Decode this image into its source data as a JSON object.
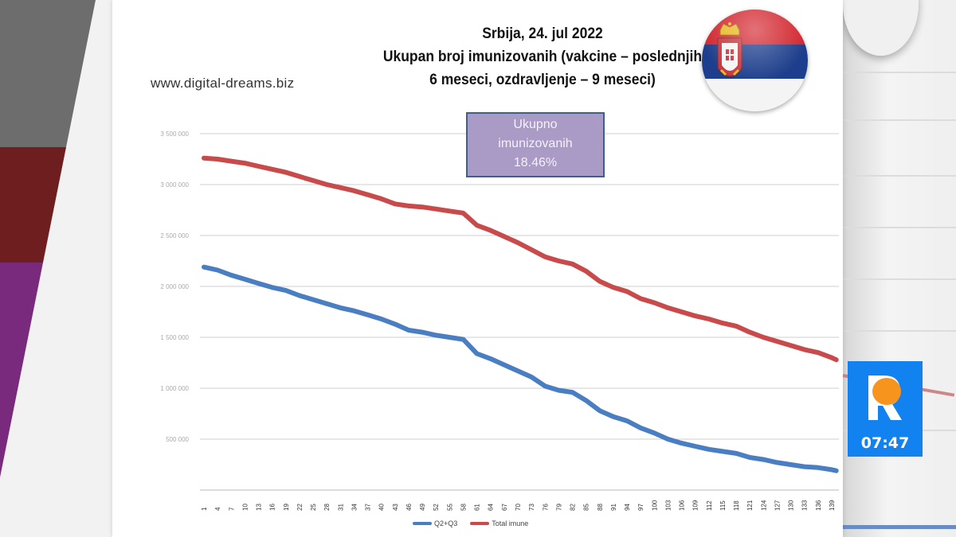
{
  "header": {
    "title_line1": "Srbija, 24. jul 2022",
    "title_line2": "Ukupan broj imunizovanih (vakcine – poslednjih",
    "title_line3": "6 meseci, ozdravljenje – 9 meseci)",
    "website": "www.digital-dreams.biz",
    "flag_icon": "serbia-flag-icon"
  },
  "annotation": {
    "line1": "Ukupno",
    "line2": "imunizovanih",
    "line3": "18.46%"
  },
  "broadcast": {
    "logo_icon": "r-logo-icon",
    "time": "07:47",
    "badge_color": "#1282f0",
    "logo_dot_color": "#f7941d"
  },
  "chart_data": {
    "type": "line",
    "title": "Srbija, 24. jul 2022 — Ukupan broj imunizovanih (vakcine – poslednjih 6 meseci, ozdravljenje – 9 meseci)",
    "xlabel": "",
    "ylabel": "",
    "ylim": [
      0,
      3500000
    ],
    "yticks": [
      0,
      500000,
      1000000,
      1500000,
      2000000,
      2500000,
      3000000,
      3500000
    ],
    "ytick_labels": [
      "",
      "500 000",
      "1 000 000",
      "1 500 000",
      "2 000 000",
      "2 500 000",
      "3 000 000",
      "3 500 000"
    ],
    "xtick_labels": [
      "1",
      "4",
      "7",
      "10",
      "13",
      "16",
      "19",
      "22",
      "25",
      "28",
      "31",
      "34",
      "37",
      "40",
      "43",
      "46",
      "49",
      "52",
      "55",
      "58",
      "61",
      "64",
      "67",
      "70",
      "73",
      "76",
      "79",
      "82",
      "85",
      "88",
      "91",
      "94",
      "97",
      "100",
      "103",
      "106",
      "109",
      "112",
      "115",
      "118",
      "121",
      "124",
      "127",
      "130",
      "133",
      "136",
      "139"
    ],
    "grid": true,
    "legend_position": "bottom",
    "x": [
      1,
      4,
      7,
      10,
      13,
      16,
      19,
      22,
      25,
      28,
      31,
      34,
      37,
      40,
      43,
      46,
      49,
      52,
      55,
      58,
      61,
      64,
      67,
      70,
      73,
      76,
      79,
      82,
      85,
      88,
      91,
      94,
      97,
      100,
      103,
      106,
      109,
      112,
      115,
      118,
      121,
      124,
      127,
      130,
      133,
      136,
      139,
      140
    ],
    "series": [
      {
        "name": "Q2+Q3",
        "color": "#4a7ec2",
        "values": [
          2190000,
          2160000,
          2110000,
          2070000,
          2030000,
          1990000,
          1960000,
          1910000,
          1870000,
          1830000,
          1790000,
          1760000,
          1720000,
          1680000,
          1630000,
          1570000,
          1550000,
          1520000,
          1500000,
          1480000,
          1340000,
          1290000,
          1230000,
          1170000,
          1110000,
          1020000,
          980000,
          960000,
          880000,
          780000,
          720000,
          680000,
          610000,
          560000,
          500000,
          460000,
          430000,
          400000,
          380000,
          360000,
          320000,
          300000,
          270000,
          250000,
          230000,
          220000,
          200000,
          190000
        ]
      },
      {
        "name": "Total imune",
        "color": "#c94a4a",
        "values": [
          3260000,
          3250000,
          3230000,
          3210000,
          3180000,
          3150000,
          3120000,
          3080000,
          3040000,
          3000000,
          2970000,
          2940000,
          2900000,
          2860000,
          2810000,
          2790000,
          2780000,
          2760000,
          2740000,
          2720000,
          2600000,
          2550000,
          2490000,
          2430000,
          2360000,
          2290000,
          2250000,
          2220000,
          2150000,
          2050000,
          1990000,
          1950000,
          1880000,
          1840000,
          1790000,
          1750000,
          1710000,
          1680000,
          1640000,
          1610000,
          1550000,
          1500000,
          1460000,
          1420000,
          1380000,
          1350000,
          1300000,
          1280000
        ]
      }
    ],
    "annotations": [
      "Ukupno imunizovanih 18.46%"
    ]
  }
}
